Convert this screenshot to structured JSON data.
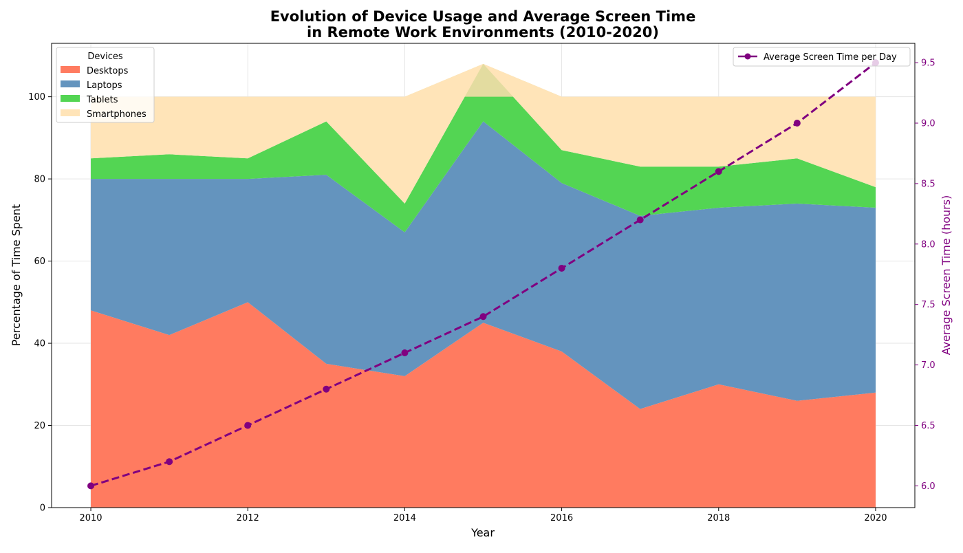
{
  "chart_data": {
    "type": "area",
    "title": "Evolution of Device Usage and Average Screen Time",
    "subtitle": "in Remote Work Environments (2010-2020)",
    "xlabel": "Year",
    "ylabel": "Percentage of Time Spent",
    "ylabel_right": "Average Screen Time (hours)",
    "x": [
      2010,
      2011,
      2012,
      2013,
      2014,
      2015,
      2016,
      2017,
      2018,
      2019,
      2020
    ],
    "xlim": [
      2009.5,
      2020.5
    ],
    "ylim": [
      0,
      113
    ],
    "ylim_right": [
      5.82,
      9.66
    ],
    "x_ticks": [
      "2010",
      "2012",
      "2014",
      "2016",
      "2018",
      "2020"
    ],
    "y_ticks": [
      "0",
      "20",
      "40",
      "60",
      "80",
      "100"
    ],
    "y_ticks_right": [
      "6.0",
      "6.5",
      "7.0",
      "7.5",
      "8.0",
      "8.5",
      "9.0",
      "9.5"
    ],
    "stacked": true,
    "series": [
      {
        "name": "Desktops",
        "color": "#ff7b60",
        "values": [
          48,
          42,
          50,
          35,
          32,
          45,
          38,
          24,
          30,
          26,
          28
        ]
      },
      {
        "name": "Laptops",
        "color": "#6494be",
        "values": [
          32,
          38,
          30,
          46,
          35,
          49,
          41,
          47,
          43,
          48,
          45
        ]
      },
      {
        "name": "Tablets",
        "color": "#53d553",
        "values": [
          5,
          6,
          5,
          13,
          7,
          14,
          8,
          12,
          10,
          11,
          5
        ]
      },
      {
        "name": "Smartphones",
        "color": "#ffe4b8",
        "values": [
          15,
          14,
          15,
          6,
          26,
          -8,
          13,
          17,
          17,
          15,
          22
        ]
      }
    ],
    "overflow_color": "#e3dca0",
    "legend_title": "Devices",
    "legend_position": "top-left",
    "line_series": {
      "name": "Average Screen Time per Day",
      "color": "#800080",
      "style": "dashed",
      "values": [
        6.0,
        6.2,
        6.5,
        6.8,
        7.1,
        7.4,
        7.8,
        8.2,
        8.6,
        9.0,
        9.5
      ]
    },
    "line_legend_position": "top-right",
    "grid": true
  }
}
